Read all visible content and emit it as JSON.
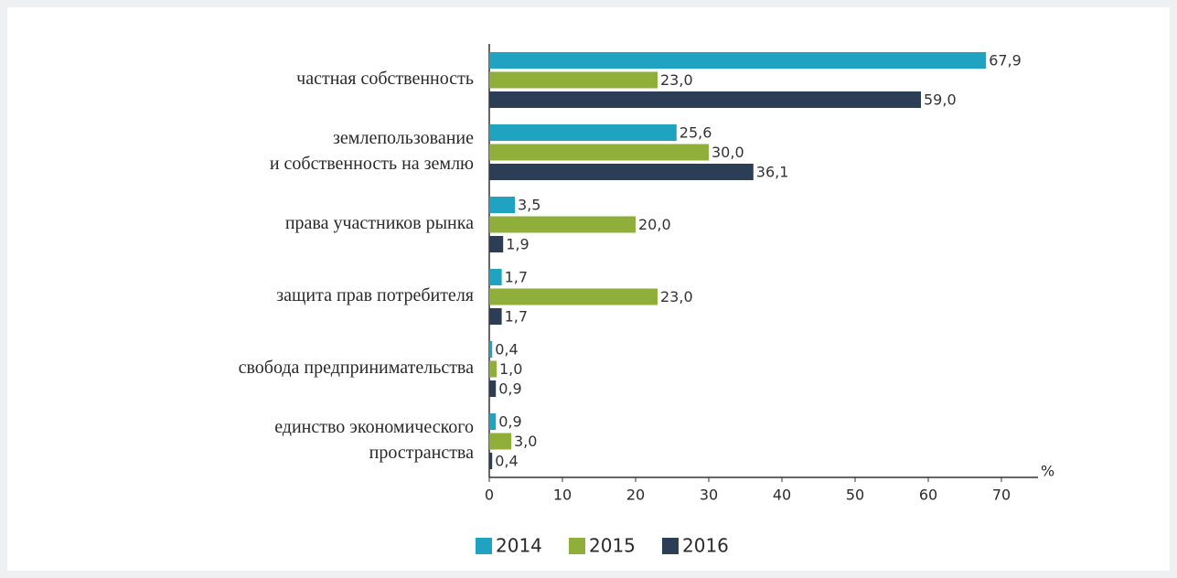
{
  "chart_data": {
    "type": "bar",
    "orientation": "horizontal",
    "categories": [
      [
        "частная собственность"
      ],
      [
        "землепользование",
        "и собственность  на землю"
      ],
      [
        "права участников рынка"
      ],
      [
        "защита прав потребителя"
      ],
      [
        "свобода предпринимательства"
      ],
      [
        "единство экономического",
        "пространства"
      ]
    ],
    "series": [
      {
        "name": "2014",
        "color": "#1fa3c0",
        "values": [
          67.9,
          25.6,
          3.5,
          1.7,
          0.4,
          0.9
        ],
        "value_labels": [
          "67,9",
          "25,6",
          "3,5",
          "1,7",
          "0,4",
          "0,9"
        ]
      },
      {
        "name": "2015",
        "color": "#8fae3a",
        "values": [
          23.0,
          30.0,
          20.0,
          23.0,
          1.0,
          3.0
        ],
        "value_labels": [
          "23,0",
          "30,0",
          "20,0",
          "23,0",
          "1,0",
          "3,0"
        ]
      },
      {
        "name": "2016",
        "color": "#2b3e55",
        "values": [
          59.0,
          36.1,
          1.9,
          1.7,
          0.9,
          0.4
        ],
        "value_labels": [
          "59,0",
          "36,1",
          "1,9",
          "1,7",
          "0,9",
          "0,4"
        ]
      }
    ],
    "x_label": "%",
    "xlim": [
      0,
      75
    ],
    "xticks": [
      0,
      10,
      20,
      30,
      40,
      50,
      60,
      70
    ],
    "legend": "bottom"
  }
}
